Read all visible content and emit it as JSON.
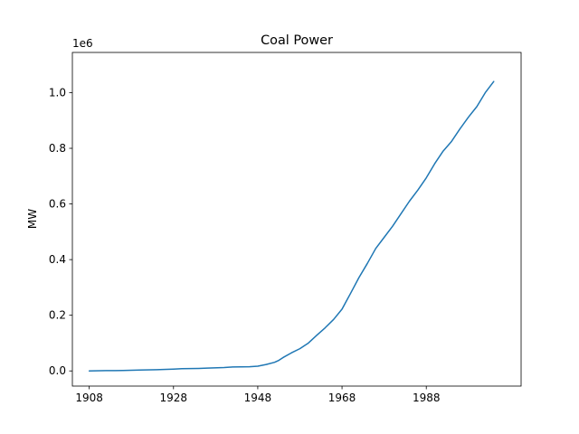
{
  "chart_data": {
    "type": "line",
    "title": "Coal Power",
    "xlabel": "",
    "ylabel": "MW",
    "offset_label": "1e6",
    "xlim": [
      1904,
      2010.5
    ],
    "ylim": [
      -54500,
      1144500
    ],
    "x_ticks": [
      1908,
      1928,
      1948,
      1968,
      1988
    ],
    "y_ticks": [
      0,
      200000,
      400000,
      600000,
      800000,
      1000000
    ],
    "y_tick_labels": [
      "0.0",
      "0.2",
      "0.4",
      "0.6",
      "0.8",
      "1.0"
    ],
    "grid": false,
    "legend": "none",
    "series": [
      {
        "color": "#1f77b4",
        "x": [
          1908,
          1912,
          1916,
          1920,
          1924,
          1928,
          1930,
          1934,
          1936,
          1940,
          1942,
          1946,
          1948,
          1950,
          1952,
          1953,
          1954,
          1956,
          1958,
          1960,
          1962,
          1964,
          1966,
          1968,
          1969,
          1970,
          1972,
          1974,
          1976,
          1978,
          1980,
          1982,
          1984,
          1986,
          1988,
          1990,
          1992,
          1994,
          1996,
          1998,
          2000,
          2002,
          2004
        ],
        "y": [
          0,
          1000,
          1500,
          3000,
          4500,
          6500,
          8000,
          9000,
          10000,
          12000,
          14000,
          15000,
          17000,
          23000,
          31000,
          38000,
          48000,
          65000,
          80000,
          100000,
          128000,
          155000,
          185000,
          222000,
          250000,
          278000,
          335000,
          386000,
          440000,
          480000,
          520000,
          565000,
          610000,
          650000,
          694000,
          745000,
          790000,
          825000,
          870000,
          912000,
          950000,
          1000000,
          1040000
        ]
      }
    ]
  }
}
